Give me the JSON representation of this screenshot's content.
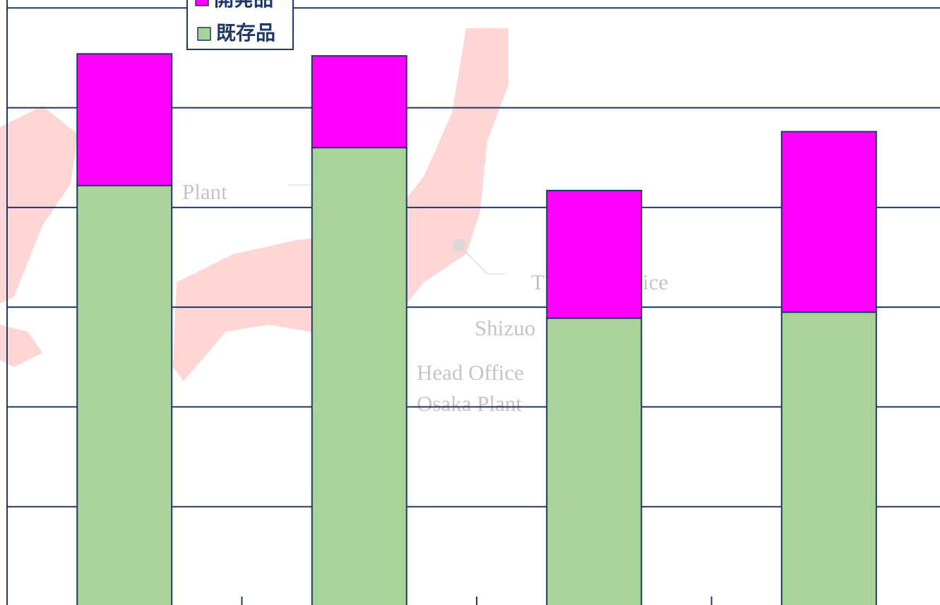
{
  "chart_data": {
    "type": "stacked_bar",
    "categories": [
      null,
      null,
      null,
      null
    ],
    "series": [
      {
        "name": "既存品",
        "color": "#a8d49a",
        "values": [
          4.22,
          4.6,
          2.89,
          2.95
        ]
      },
      {
        "name": "開発品",
        "color": "#ff00ff",
        "values": [
          1.32,
          0.92,
          1.28,
          1.81
        ]
      }
    ],
    "ylim": [
      0,
      6.08
    ],
    "yticks": [
      0,
      1,
      2,
      3,
      4,
      5,
      6
    ],
    "grid": true,
    "legend": "top-left",
    "watermark": [
      "Plant",
      "T",
      "ice",
      "Shizuo",
      "Head Office",
      "Osaka Plant"
    ]
  }
}
